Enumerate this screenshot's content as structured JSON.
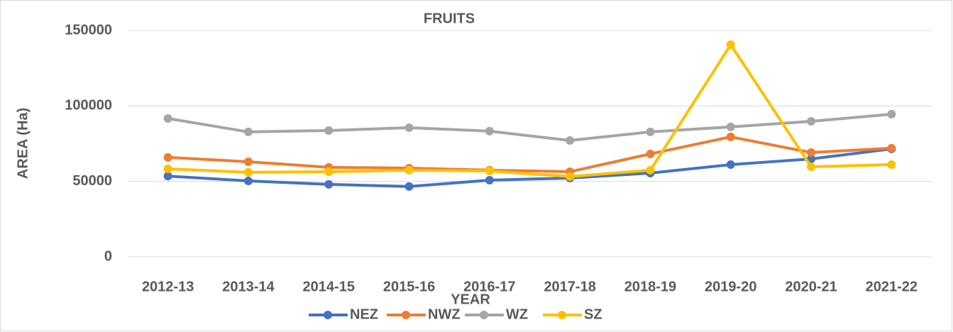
{
  "chart_data": {
    "type": "line",
    "title": "FRUITS",
    "x_label": "YEAR",
    "y_label": "AREA (Ha)",
    "categories": [
      "2012-13",
      "2013-14",
      "2014-15",
      "2015-16",
      "2016-17",
      "2017-18",
      "2018-19",
      "2019-20",
      "2020-21",
      "2021-22"
    ],
    "series": [
      {
        "name": "NEZ",
        "color": "#4472c4",
        "values": [
          53500,
          50300,
          48000,
          46600,
          50800,
          52200,
          55500,
          61100,
          64900,
          71500
        ]
      },
      {
        "name": "NWZ",
        "color": "#ed7d31",
        "values": [
          65900,
          63000,
          59300,
          58800,
          57400,
          56400,
          68200,
          79500,
          69100,
          72000
        ]
      },
      {
        "name": "WZ",
        "color": "#a5a5a5",
        "values": [
          91700,
          82800,
          83700,
          85600,
          83300,
          77100,
          82800,
          86100,
          89800,
          94500
        ]
      },
      {
        "name": "SZ",
        "color": "#ffc000",
        "values": [
          58300,
          56000,
          56400,
          57400,
          56900,
          53200,
          57400,
          140600,
          59700,
          61100
        ]
      }
    ],
    "ylim": [
      0,
      150000
    ],
    "yticks": [
      0,
      50000,
      100000,
      150000
    ],
    "grid": true,
    "legend": "bottom"
  }
}
